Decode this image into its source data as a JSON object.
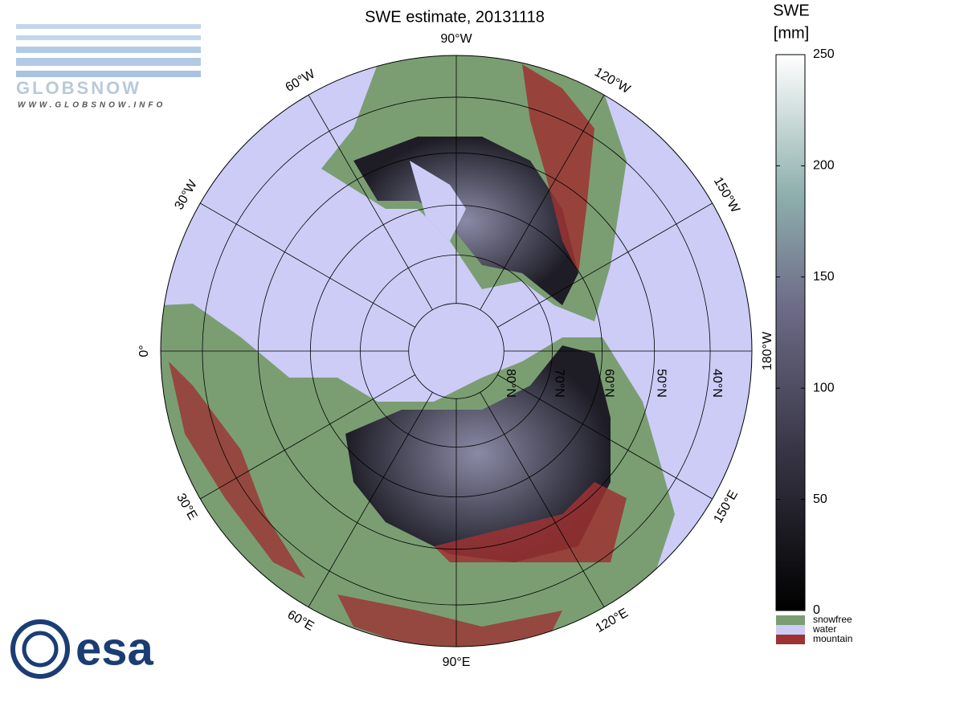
{
  "map": {
    "title": "SWE estimate, 20131118",
    "colorbar": {
      "label": [
        "SWE",
        "[mm]"
      ],
      "lim": [
        0,
        250
      ],
      "ticks": [
        0,
        50,
        100,
        150,
        200,
        250
      ]
    },
    "legend": [
      {
        "name": "snowfree",
        "color": "#7a9e72"
      },
      {
        "name": "water",
        "color": "#ccccf7"
      },
      {
        "name": "mountain",
        "color": "#9c3232"
      }
    ],
    "meridians": [
      {
        "value": 0,
        "label": "0°"
      },
      {
        "value": -30,
        "label": "30°W"
      },
      {
        "value": -60,
        "label": "60°W"
      },
      {
        "value": -90,
        "label": "90°W"
      },
      {
        "value": -120,
        "label": "120°W"
      },
      {
        "value": -150,
        "label": "150°W"
      },
      {
        "value": 180,
        "label": "180°W"
      },
      {
        "value": 150,
        "label": "150°E"
      },
      {
        "value": 120,
        "label": "120°E"
      },
      {
        "value": 90,
        "label": "90°E"
      },
      {
        "value": 60,
        "label": "60°E"
      },
      {
        "value": 30,
        "label": "30°E"
      }
    ],
    "parallels": [
      {
        "value": 80,
        "label": "80°N"
      },
      {
        "value": 70,
        "label": "70°N"
      },
      {
        "value": 60,
        "label": "60°N"
      },
      {
        "value": 50,
        "label": "50°N"
      },
      {
        "value": 40,
        "label": "40°N"
      }
    ],
    "latlim": [
      33,
      90
    ],
    "logos": {
      "globsnow": "GLOBSNOW",
      "url": "WWW.GLOBSNOW.INFO",
      "esa": "esa"
    }
  }
}
